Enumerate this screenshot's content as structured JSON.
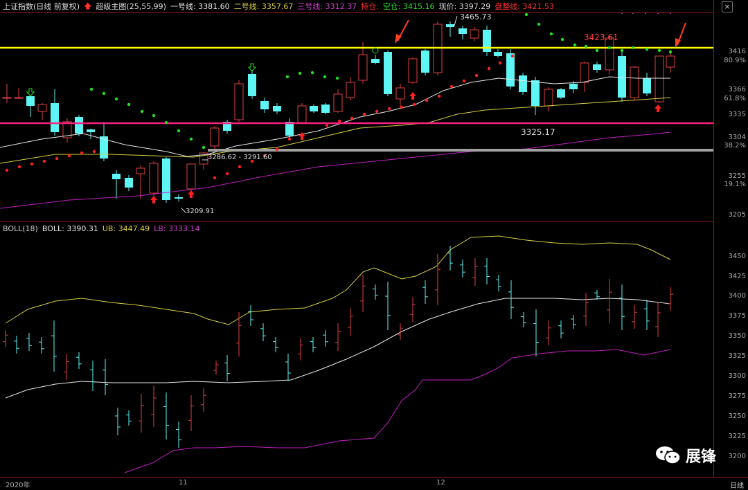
{
  "header": {
    "index_name": "上证指数(日线 前复权)",
    "indicator_name": "超级主图(25,55,99)",
    "line1": "一号线: 3381.60",
    "line2": "二号线: 3357.67",
    "line3": "三号线: 3312.37",
    "hold": "持仓:",
    "empty": "空仓: 3415.16",
    "price": "现价: 3397.29",
    "consolidation": "盘整线: 3421.53",
    "close_btn": "×"
  },
  "annotations": {
    "high": "3465.73",
    "resistance": "3423.61",
    "low_mid": "3325.17",
    "gap": "3286.62 - 3291.60",
    "low": "3209.91"
  },
  "price_axis": {
    "labels": [
      "3416",
      "3366",
      "3335",
      "3304",
      "3255",
      "3205"
    ],
    "percents": [
      "80.9%",
      "61.8%",
      "38.2%",
      "19.1%"
    ]
  },
  "boll": {
    "name": "BOLL(18)",
    "mid": "BOLL: 3390.31",
    "ub": "UB: 3447.49",
    "lb": "LB: 3333.14",
    "axis_labels": [
      "3450",
      "3425",
      "3400",
      "3375",
      "3350",
      "3325",
      "3300",
      "3275",
      "3250",
      "3225",
      "3200"
    ]
  },
  "bottom": {
    "dates": [
      "2020年",
      "11",
      "12"
    ],
    "period": "日线"
  },
  "watermark": {
    "text": "展锋"
  },
  "colors": {
    "up": "#e04040",
    "down": "#5ef5f5",
    "line1": "#e8e8e8",
    "line2": "#d8d040",
    "line3": "#c020c0",
    "yellow_level": "#ffff00",
    "magenta_level": "#ff2080",
    "gray_level": "#a0a0a0"
  }
}
